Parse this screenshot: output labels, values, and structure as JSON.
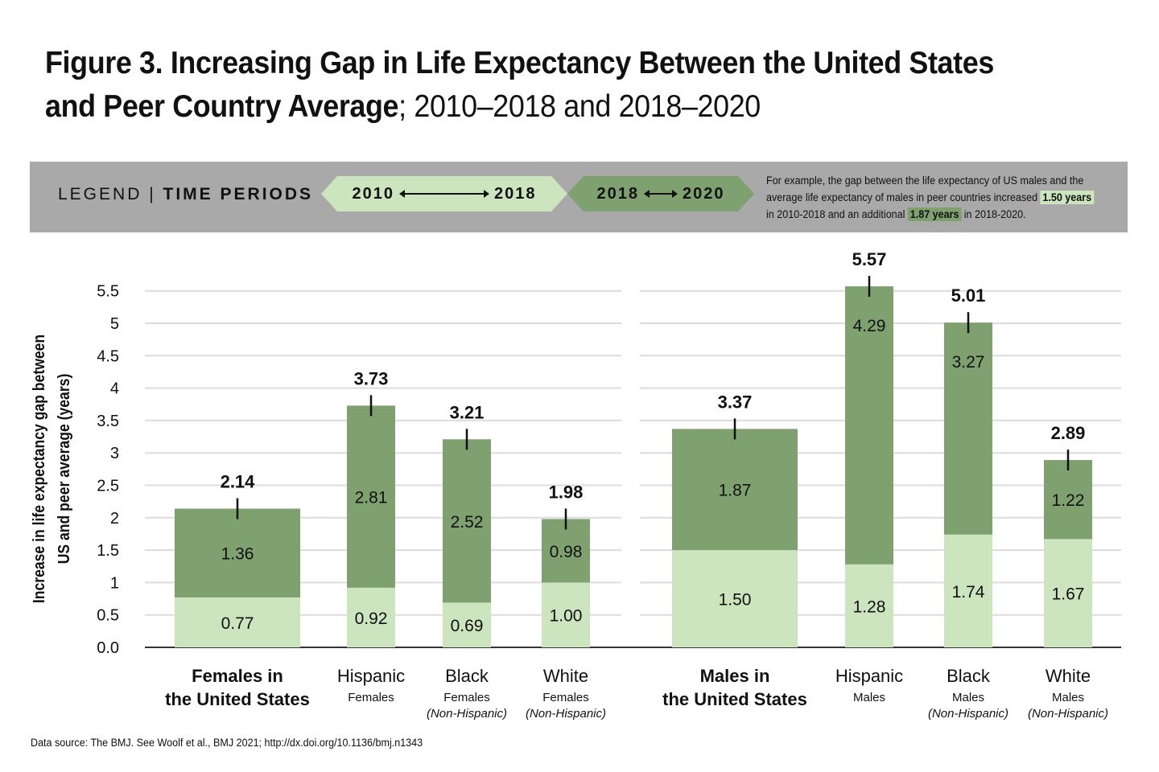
{
  "title": {
    "bold": "Figure 3. Increasing Gap in Life Expectancy Between the United States and Peer Country Average",
    "rest": "; 2010–2018 and 2018–2020"
  },
  "legend": {
    "label": "LEGEND",
    "separator": "|",
    "time_periods": "TIME PERIODS",
    "period1": {
      "start": "2010",
      "end": "2018",
      "color": "#cde5bf"
    },
    "period2": {
      "start": "2018",
      "end": "2020",
      "color": "#7fa06f"
    },
    "note_part1": "For example, the gap between the life expectancy of US males and the average life expectancy of males in peer countries increased",
    "note_hl1": "1.50 years",
    "note_part2": "in 2010-2018 and an additional",
    "note_hl2": "1.87 years",
    "note_part3": "in 2018-2020."
  },
  "source": "Data source: The BMJ. See Woolf et al., BMJ 2021; http://dx.doi.org/10.1136/bmj.n1343",
  "chart_data": {
    "type": "bar",
    "stacked": true,
    "ylabel_line1": "Increase in life expectancy gap between",
    "ylabel_line2": "US and peer average (years)",
    "ylim": [
      0,
      5.5
    ],
    "yticks": [
      "0.0",
      "0.5",
      "1",
      "1.5",
      "2",
      "2.5",
      "3",
      "3.5",
      "4",
      "4.5",
      "5",
      "5.5"
    ],
    "grid": true,
    "colors": {
      "period1": "#cde5bf",
      "period2": "#7fa06f"
    },
    "panels": [
      {
        "categories": [
          {
            "main": [
              "Females in",
              "the United States"
            ],
            "bold": true,
            "sub": [],
            "p1": 0.77,
            "p2": 1.36,
            "total": 2.14
          },
          {
            "main": [
              "Hispanic"
            ],
            "bold": false,
            "sub": [
              "Females"
            ],
            "p1": 0.92,
            "p2": 2.81,
            "total": 3.73
          },
          {
            "main": [
              "Black"
            ],
            "bold": false,
            "sub": [
              "Females",
              "(Non-Hispanic)"
            ],
            "p1": 0.69,
            "p2": 2.52,
            "total": 3.21
          },
          {
            "main": [
              "White"
            ],
            "bold": false,
            "sub": [
              "Females",
              "(Non-Hispanic)"
            ],
            "p1": 1.0,
            "p2": 0.98,
            "total": 1.98
          }
        ]
      },
      {
        "categories": [
          {
            "main": [
              "Males in",
              "the United States"
            ],
            "bold": true,
            "sub": [],
            "p1": 1.5,
            "p2": 1.87,
            "total": 3.37
          },
          {
            "main": [
              "Hispanic"
            ],
            "bold": false,
            "sub": [
              "Males"
            ],
            "p1": 1.28,
            "p2": 4.29,
            "total": 5.57
          },
          {
            "main": [
              "Black"
            ],
            "bold": false,
            "sub": [
              "Males",
              "(Non-Hispanic)"
            ],
            "p1": 1.74,
            "p2": 3.27,
            "total": 5.01
          },
          {
            "main": [
              "White"
            ],
            "bold": false,
            "sub": [
              "Males",
              "(Non-Hispanic)"
            ],
            "p1": 1.67,
            "p2": 1.22,
            "total": 2.89
          }
        ]
      }
    ]
  }
}
